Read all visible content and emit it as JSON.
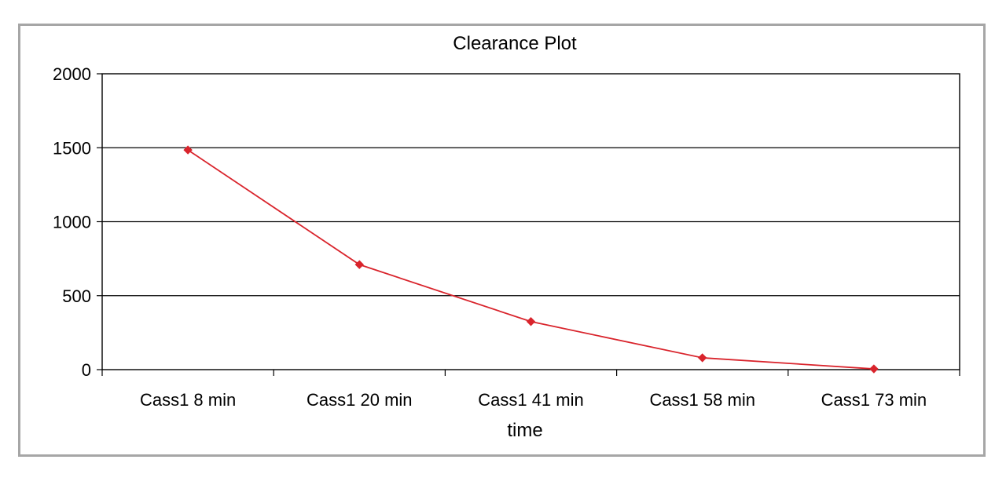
{
  "chart_data": {
    "type": "line",
    "title": "Clearance Plot",
    "xlabel": "time",
    "ylabel": "",
    "categories": [
      "Cass1 8 min",
      "Cass1 20 min",
      "Cass1 41 min",
      "Cass1 58 min",
      "Cass1 73 min"
    ],
    "series": [
      {
        "values": [
          1485,
          710,
          325,
          80,
          5
        ],
        "color": "#d9242c",
        "marker": "diamond"
      }
    ],
    "ylim": [
      0,
      2000
    ],
    "yticks": [
      "0",
      "500",
      "1000",
      "1500",
      "2000"
    ],
    "ytick_values": [
      0,
      500,
      1000,
      1500,
      2000
    ],
    "grid": "horizontal",
    "legend": "none"
  }
}
